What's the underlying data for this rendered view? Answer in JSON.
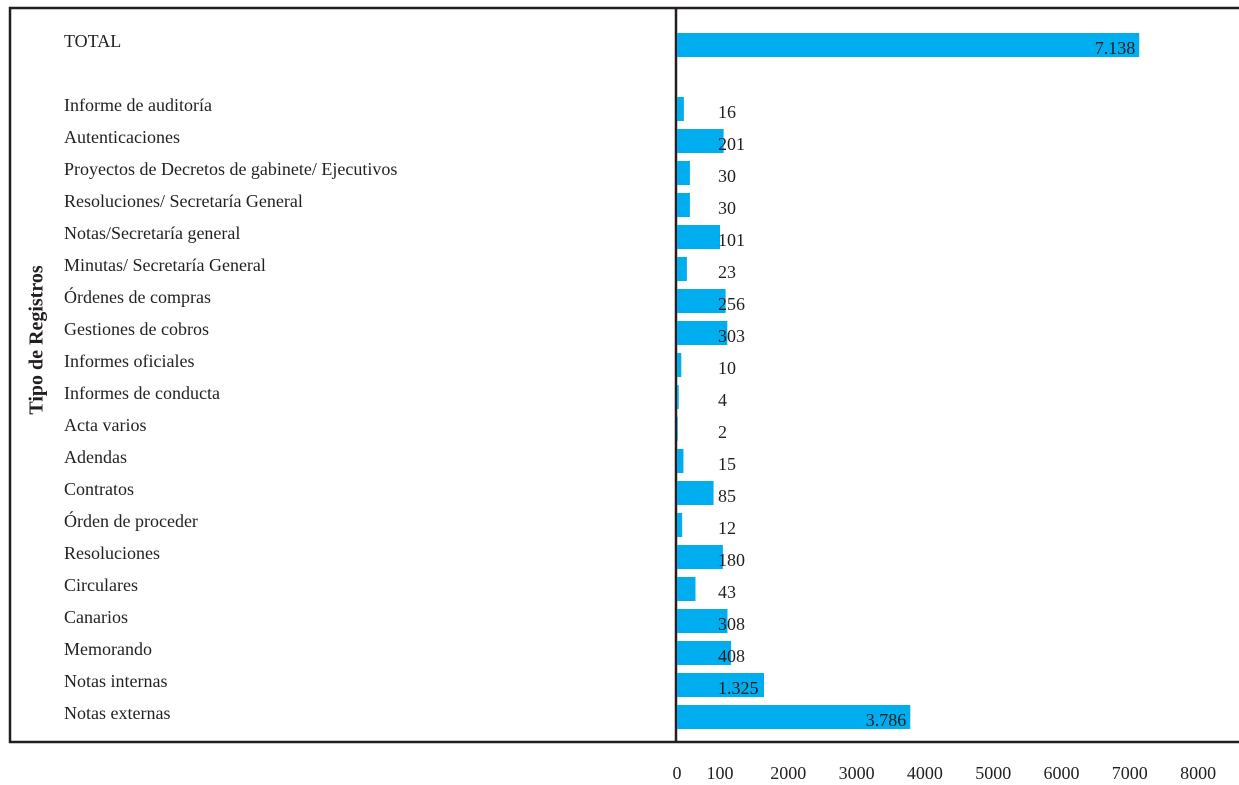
{
  "chart_data": {
    "type": "bar",
    "orientation": "horizontal",
    "y_label": "Tipo de Registros",
    "categories": [
      "TOTAL",
      "Informe de auditoría",
      "Autenticaciones",
      "Proyectos de Decretos de gabinete/ Ejecutivos",
      "Resoluciones/ Secretaría General",
      "Notas/Secretaría general",
      "Minutas/ Secretaría General",
      "Órdenes de compras",
      "Gestiones de cobros",
      "Informes oficiales",
      "Informes de conducta",
      "Acta varios",
      "Adendas",
      "Contratos",
      "Órden de proceder",
      "Resoluciones",
      "Circulares",
      "Canarios",
      "Memorando",
      "Notas internas",
      "Notas externas"
    ],
    "values": [
      7138,
      16,
      201,
      30,
      30,
      101,
      23,
      256,
      303,
      10,
      4,
      2,
      15,
      85,
      12,
      180,
      43,
      308,
      408,
      1325,
      3786
    ],
    "value_labels": [
      "7.138",
      "16",
      "201",
      "30",
      "30",
      "101",
      "23",
      "256",
      "303",
      "10",
      "4",
      "2",
      "15",
      "85",
      "12",
      "180",
      "43",
      "308",
      "408",
      "1.325",
      "3.786"
    ],
    "color": "#00aeef",
    "xlim": [
      0,
      8000
    ],
    "xticks": [
      0,
      100,
      2000,
      3000,
      4000,
      5000,
      6000,
      7000,
      8000
    ]
  }
}
